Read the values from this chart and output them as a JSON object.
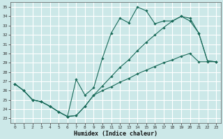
{
  "xlabel": "Humidex (Indice chaleur)",
  "background_color": "#cce8e8",
  "grid_color": "#ffffff",
  "line_color": "#1a6b5a",
  "xlim": [
    -0.5,
    23.5
  ],
  "ylim": [
    22.5,
    35.5
  ],
  "xticks": [
    0,
    1,
    2,
    3,
    4,
    5,
    6,
    7,
    8,
    9,
    10,
    11,
    12,
    13,
    14,
    15,
    16,
    17,
    18,
    19,
    20,
    21,
    22,
    23
  ],
  "yticks": [
    23,
    24,
    25,
    26,
    27,
    28,
    29,
    30,
    31,
    32,
    33,
    34,
    35
  ],
  "line1_x": [
    0,
    1,
    2,
    3,
    4,
    5,
    6,
    7,
    8,
    9,
    10,
    11,
    12,
    13,
    14,
    15,
    16,
    17,
    18,
    19,
    20,
    21,
    22,
    23
  ],
  "line1_y": [
    26.7,
    26.0,
    25.0,
    24.8,
    24.3,
    23.7,
    23.2,
    27.2,
    25.5,
    26.3,
    29.5,
    32.2,
    33.8,
    33.3,
    35.0,
    34.6,
    33.2,
    33.5,
    33.5,
    34.0,
    33.5,
    32.2,
    29.2,
    29.1
  ],
  "line2_x": [
    0,
    1,
    2,
    3,
    4,
    5,
    6,
    7,
    8,
    9,
    10,
    11,
    12,
    13,
    14,
    15,
    16,
    17,
    18,
    19,
    20,
    21,
    22,
    23
  ],
  "line2_y": [
    26.7,
    26.0,
    25.0,
    24.8,
    24.3,
    23.7,
    23.2,
    23.3,
    24.3,
    25.5,
    26.0,
    26.4,
    26.9,
    27.3,
    27.8,
    28.2,
    28.6,
    29.0,
    29.3,
    29.7,
    30.0,
    29.1,
    29.1,
    29.1
  ],
  "line3_x": [
    0,
    1,
    2,
    3,
    4,
    5,
    6,
    7,
    8,
    9,
    10,
    11,
    12,
    13,
    14,
    15,
    16,
    17,
    18,
    19,
    20,
    21,
    22,
    23
  ],
  "line3_y": [
    26.7,
    26.0,
    25.0,
    24.8,
    24.3,
    23.7,
    23.2,
    23.3,
    24.3,
    25.5,
    26.5,
    27.5,
    28.5,
    29.3,
    30.3,
    31.2,
    32.0,
    32.8,
    33.5,
    34.0,
    33.8,
    32.2,
    29.2,
    29.1
  ]
}
